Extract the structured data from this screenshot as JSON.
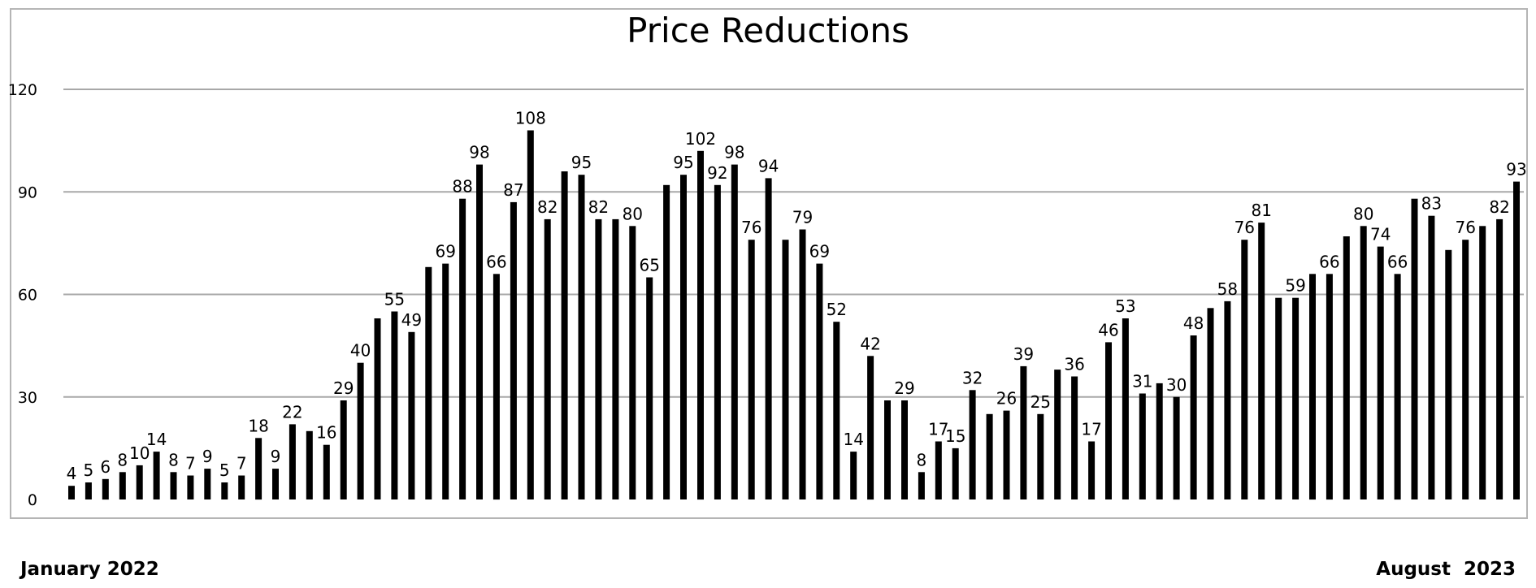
{
  "chart_data": {
    "type": "bar",
    "title": "Price Reductions",
    "xlabel": "",
    "ylabel": "",
    "ylim": [
      0,
      120
    ],
    "yticks": [
      0,
      30,
      60,
      90,
      120
    ],
    "grid": true,
    "legend": "none",
    "bar_color": "#000000",
    "start_label": "January 2022",
    "end_label": "August  2023",
    "values": [
      4,
      5,
      6,
      8,
      10,
      14,
      8,
      7,
      9,
      5,
      7,
      18,
      9,
      22,
      20,
      16,
      29,
      40,
      53,
      55,
      49,
      68,
      69,
      88,
      98,
      66,
      87,
      108,
      82,
      96,
      95,
      82,
      82,
      80,
      65,
      92,
      95,
      102,
      92,
      98,
      76,
      94,
      76,
      79,
      69,
      52,
      14,
      42,
      29,
      29,
      8,
      17,
      15,
      32,
      25,
      26,
      39,
      25,
      38,
      36,
      17,
      46,
      53,
      31,
      34,
      30,
      48,
      56,
      58,
      76,
      81,
      59,
      59,
      66,
      66,
      77,
      80,
      74,
      66,
      88,
      83,
      73,
      76,
      80,
      82,
      93
    ],
    "labels": [
      "4",
      "5",
      "6",
      "8",
      "10",
      "14",
      "8",
      "7",
      "9",
      "5",
      "7",
      "18",
      "9",
      "22",
      "",
      "16",
      "29",
      "40",
      "",
      "55",
      "49",
      "",
      "69",
      "88",
      "98",
      "66",
      "87",
      "108",
      "82",
      "",
      "95",
      "82",
      "",
      "80",
      "65",
      "",
      "95",
      "102",
      "92",
      "98",
      "76",
      "94",
      "",
      "79",
      "69",
      "52",
      "14",
      "42",
      "",
      "29",
      "8",
      "17",
      "15",
      "32",
      "",
      "26",
      "39",
      "25",
      "",
      "36",
      "17",
      "46",
      "53",
      "31",
      "",
      "30",
      "48",
      "",
      "58",
      "76",
      "81",
      "",
      "59",
      "",
      "66",
      "",
      "80",
      "74",
      "66",
      "",
      "83",
      "",
      "76",
      "",
      "82",
      "93"
    ]
  }
}
